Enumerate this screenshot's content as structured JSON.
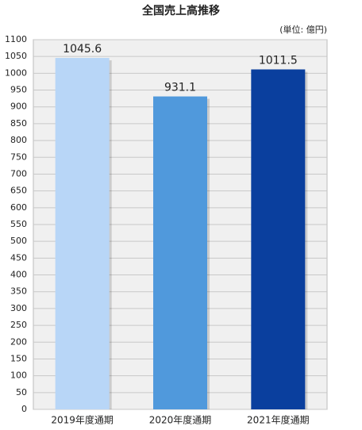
{
  "chart_data": {
    "type": "bar",
    "title": "全国売上高推移",
    "unit_note": "(単位: 億円)",
    "categories": [
      "2019年度通期",
      "2020年度通期",
      "2021年度通期"
    ],
    "values": [
      1045.6,
      931.1,
      1011.5
    ],
    "colors": [
      "#b8d6f7",
      "#5099dc",
      "#0a3f9e"
    ],
    "ylim": [
      0,
      1100
    ],
    "yticks": [
      0,
      50,
      100,
      150,
      200,
      250,
      300,
      350,
      400,
      450,
      500,
      550,
      600,
      650,
      700,
      750,
      800,
      850,
      900,
      950,
      1000,
      1050,
      1100
    ],
    "grid": true
  }
}
